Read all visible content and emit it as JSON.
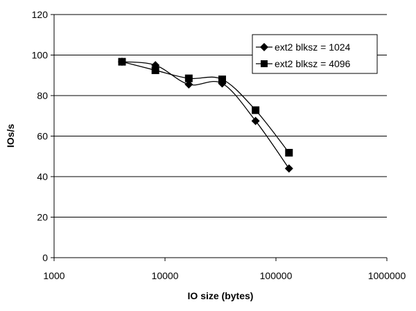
{
  "chart_data": {
    "type": "line",
    "title": "",
    "xlabel": "IO size (bytes)",
    "ylabel": "IOs/s",
    "xscale": "log",
    "xlim": [
      1000,
      1000000
    ],
    "ylim": [
      0,
      120
    ],
    "x_ticks": [
      1000,
      10000,
      100000,
      1000000
    ],
    "x_tick_labels": [
      "1000",
      "10000",
      "100000",
      "1000000"
    ],
    "y_ticks": [
      0,
      20,
      40,
      60,
      80,
      100,
      120
    ],
    "y_tick_labels": [
      "0",
      "20",
      "40",
      "60",
      "80",
      "100",
      "120"
    ],
    "grid": "horizontal",
    "legend_position": "top-right",
    "x": [
      4096,
      8192,
      16384,
      32768,
      65536,
      131072
    ],
    "series": [
      {
        "name": "ext2 blksz = 1024",
        "marker": "diamond",
        "values": [
          96.7,
          95,
          85.5,
          86,
          67.5,
          44
        ]
      },
      {
        "name": "ext2 blksz = 4096",
        "marker": "square",
        "values": [
          96.7,
          92.5,
          88.5,
          88,
          72.8,
          51.8
        ]
      }
    ]
  }
}
